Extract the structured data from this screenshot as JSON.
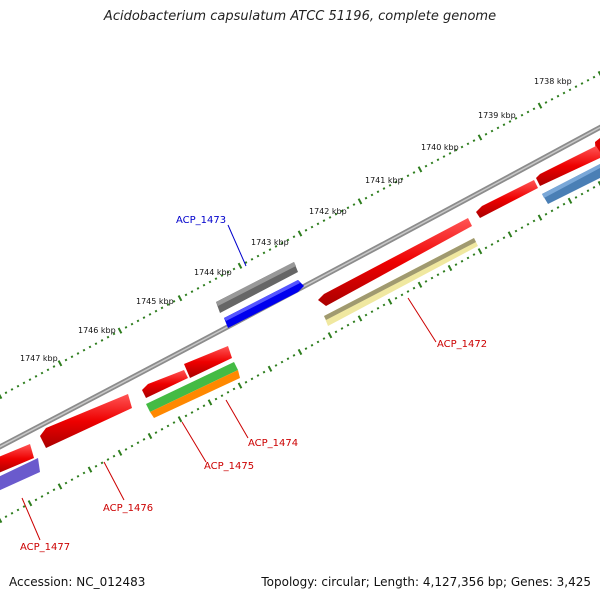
{
  "title": "Acidobacterium capsulatum ATCC 51196, complete genome",
  "footer": {
    "accession": "Accession: NC_012483",
    "summary": "Topology: circular; Length: 4,127,356 bp; Genes: 3,425"
  },
  "colors": {
    "backbone": "#8a8a8a",
    "tick_dots": "#2e7d1e",
    "label_forward": "#0000cc",
    "label_reverse": "#cc0000"
  },
  "kbp_ticks": [
    "1738 kbp",
    "1739 kbp",
    "1740 kbp",
    "1741 kbp",
    "1742 kbp",
    "1743 kbp",
    "1744 kbp",
    "1745 kbp",
    "1746 kbp",
    "1747 kbp"
  ],
  "genes": [
    {
      "name": "ACP_1473",
      "strand": "forward",
      "color": "#0000ee",
      "label_color": "#0000cc"
    },
    {
      "name": "ACP_1472",
      "strand": "reverse",
      "color": "#f0e8a0",
      "label_color": "#cc0000"
    },
    {
      "name": "ACP_1474",
      "strand": "reverse",
      "color": "#44bb44",
      "label_color": "#cc0000"
    },
    {
      "name": "ACP_1475",
      "strand": "reverse",
      "color": "#ff8800",
      "label_color": "#cc0000"
    },
    {
      "name": "ACP_1476",
      "strand": "reverse",
      "color": "#ee0000",
      "label_color": "#cc0000"
    },
    {
      "name": "ACP_1477",
      "strand": "reverse",
      "color": "#6a5acd",
      "label_color": "#cc0000"
    }
  ]
}
